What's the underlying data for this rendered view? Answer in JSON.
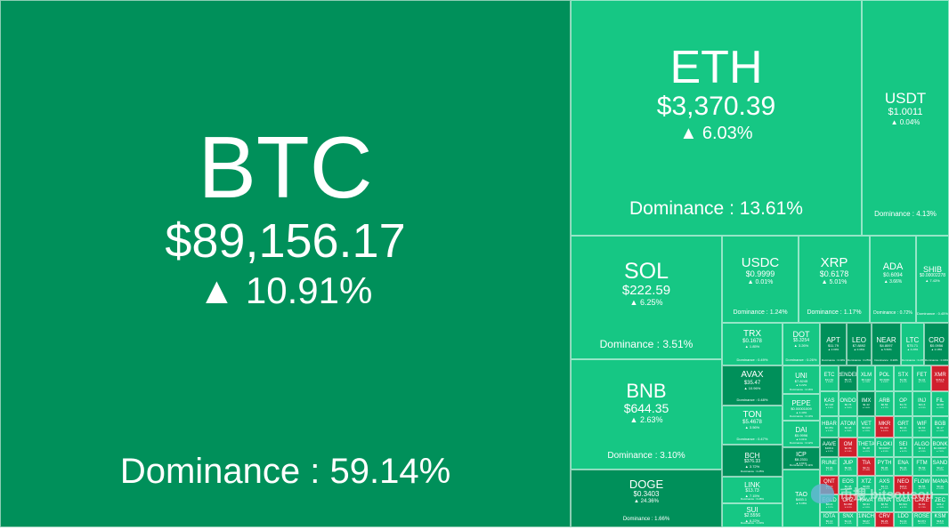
{
  "colors": {
    "up_dark": "#00905a",
    "up": "#16c784",
    "up_light": "#1bc47f",
    "down": "#d0202d",
    "grey": "#4f6b62"
  },
  "change_icon": "triangle-up-icon",
  "watermark": {
    "text": "币搜 bitsousou",
    "icon": "bird-logo-icon"
  },
  "coins": [
    {
      "symbol": "BTC",
      "price": "$89,156.17",
      "change": "▲ 10.91%",
      "dominance": "Dominance : 59.14%",
      "color": "up_dark"
    },
    {
      "symbol": "ETH",
      "price": "$3,370.39",
      "change": "▲ 6.03%",
      "dominance": "Dominance : 13.61%",
      "color": "up"
    },
    {
      "symbol": "USDT",
      "price": "$1.0011",
      "change": "▲ 0.04%",
      "dominance": "Dominance : 4.13%",
      "color": "up"
    },
    {
      "symbol": "SOL",
      "price": "$222.59",
      "change": "▲ 6.25%",
      "dominance": "Dominance : 3.51%",
      "color": "up"
    },
    {
      "symbol": "BNB",
      "price": "$644.35",
      "change": "▲ 2.63%",
      "dominance": "Dominance : 3.10%",
      "color": "up"
    },
    {
      "symbol": "DOGE",
      "price": "$0.3403",
      "change": "▲ 24.36%",
      "dominance": "Dominance : 1.66%",
      "color": "up_dark"
    },
    {
      "symbol": "USDC",
      "price": "$0.9999",
      "change": "▲ 0.01%",
      "dominance": "Dominance : 1.24%",
      "color": "up"
    },
    {
      "symbol": "XRP",
      "price": "$0.6178",
      "change": "▲ 5.01%",
      "dominance": "Dominance : 1.17%",
      "color": "up"
    },
    {
      "symbol": "ADA",
      "price": "$0.6094",
      "change": "▲ 3.66%",
      "dominance": "Dominance : 0.72%",
      "color": "up"
    },
    {
      "symbol": "SHIB",
      "price": "$0.00002278",
      "change": "▲ 7.43%",
      "dominance": "Dominance : 0.45%",
      "color": "up"
    },
    {
      "symbol": "TRX",
      "price": "$0.1678",
      "change": "▲ 1.85%",
      "dominance": "Dominance : 0.49%",
      "color": "up"
    },
    {
      "symbol": "DOT",
      "price": "$5.3254",
      "change": "▲ 3.26%",
      "dominance": "Dominance : 0.26%",
      "color": "up"
    },
    {
      "symbol": "APT",
      "price": "$11.79",
      "change": "▲ 2.09%",
      "dominance": "Dominance : 0.19%",
      "color": "up_dark"
    },
    {
      "symbol": "LEO",
      "price": "$7.8892",
      "change": "▲ 0.36%",
      "dominance": "Dominance : 0.25%",
      "color": "up_dark"
    },
    {
      "symbol": "NEAR",
      "price": "$4.8097",
      "change": "▲ 5.56%",
      "dominance": "Dominance : 0.20%",
      "color": "up_dark"
    },
    {
      "symbol": "LTC",
      "price": "$75.71",
      "change": "▲ 4.20%",
      "dominance": "Dominance : 0.20%",
      "color": "up"
    },
    {
      "symbol": "CRO",
      "price": "$0.0956",
      "change": "▲ 2.18%",
      "dominance": "Dominance : 0.09%",
      "color": "up_dark"
    },
    {
      "symbol": "AVAX",
      "price": "$35.47",
      "change": "▲ 10.96%",
      "dominance": "Dominance : 0.48%",
      "color": "up_dark"
    },
    {
      "symbol": "TON",
      "price": "$5.4678",
      "change": "▲ 3.56%",
      "dominance": "Dominance : 0.47%",
      "color": "up"
    },
    {
      "symbol": "BCH",
      "price": "$376.33",
      "change": "▲ 3.72%",
      "dominance": "Dominance : 0.25%",
      "color": "up_dark"
    },
    {
      "symbol": "LINK",
      "price": "$13.73",
      "change": "▲ 7.15%",
      "dominance": "Dominance : 0.28%",
      "color": "up"
    },
    {
      "symbol": "SUI",
      "price": "$2.5556",
      "change": "▲ 6.22%",
      "dominance": "Dominance : 0.23%",
      "color": "up"
    },
    {
      "symbol": "UNI",
      "price": "$7.8245",
      "change": "▲ 9.22%",
      "dominance": "Dominance : 0.16%",
      "color": "up"
    },
    {
      "symbol": "PEPE",
      "price": "$0.00001009",
      "change": "▲ 4.40%",
      "dominance": "Dominance : 0.13%",
      "color": "up"
    },
    {
      "symbol": "DAI",
      "price": "$0.9996",
      "change": "▲ 0.01%",
      "dominance": "Dominance : 0.12%",
      "color": "up"
    },
    {
      "symbol": "ICP",
      "price": "$8.2331",
      "change": "▲ 2.91%",
      "dominance": "Dominance : 0.11%",
      "color": "up_dark"
    },
    {
      "symbol": "TAO",
      "price": "$453.1",
      "change": "▲ 5.08%",
      "dominance": "",
      "color": "up"
    },
    {
      "symbol": "ETC",
      "price": "$21.54",
      "change": "▲ 3.86%",
      "dominance": "",
      "color": "up"
    },
    {
      "symbol": "RENDER",
      "price": "$5.75",
      "change": "▲ 8.12%",
      "dominance": "",
      "color": "up_dark"
    },
    {
      "symbol": "XLM",
      "price": "$0.1110",
      "change": "▲ 2.04%",
      "dominance": "",
      "color": "up"
    },
    {
      "symbol": "POL",
      "price": "$0.3346",
      "change": "▲ 6.60%",
      "dominance": "",
      "color": "up"
    },
    {
      "symbol": "STX",
      "price": "$1.69",
      "change": "▲ 4.51%",
      "dominance": "",
      "color": "up"
    },
    {
      "symbol": "FET",
      "price": "$1.31",
      "change": "▲ 2.77%",
      "dominance": "",
      "color": "up"
    },
    {
      "symbol": "XMR",
      "price": "$151.6",
      "change": "▼ 1.12%",
      "dominance": "",
      "color": "down"
    },
    {
      "symbol": "KAS",
      "price": "$0.118",
      "change": "▲ 3.10%",
      "dominance": "",
      "color": "up"
    },
    {
      "symbol": "ONDO",
      "price": "$0.78",
      "change": "▲ 2.90%",
      "dominance": "",
      "color": "up"
    },
    {
      "symbol": "IMX",
      "price": "$1.32",
      "change": "▲ 5.44%",
      "dominance": "",
      "color": "up_dark"
    },
    {
      "symbol": "ARB",
      "price": "$0.56",
      "change": "▲ 4.72%",
      "dominance": "",
      "color": "up"
    },
    {
      "symbol": "OP",
      "price": "$1.72",
      "change": "▲ 6.98%",
      "dominance": "",
      "color": "up"
    },
    {
      "symbol": "INJ",
      "price": "$21.6",
      "change": "▲ 8.24%",
      "dominance": "",
      "color": "up"
    },
    {
      "symbol": "FIL",
      "price": "$3.68",
      "change": "▲ 4.05%",
      "dominance": "",
      "color": "up"
    },
    {
      "symbol": "HBAR",
      "price": "$0.051",
      "change": "▲ 3.33%",
      "dominance": "",
      "color": "up"
    },
    {
      "symbol": "ATOM",
      "price": "$4.48",
      "change": "▲ 2.86%",
      "dominance": "",
      "color": "up"
    },
    {
      "symbol": "VET",
      "price": "$0.024",
      "change": "▲ 3.95%",
      "dominance": "",
      "color": "up"
    },
    {
      "symbol": "MKR",
      "price": "$1,321",
      "change": "▼ 0.87%",
      "dominance": "",
      "color": "down"
    },
    {
      "symbol": "GRT",
      "price": "$0.16",
      "change": "▲ 4.81%",
      "dominance": "",
      "color": "up"
    },
    {
      "symbol": "WIF",
      "price": "$2.63",
      "change": "▲ 9.80%",
      "dominance": "",
      "color": "up"
    },
    {
      "symbol": "BGB",
      "price": "$1.17",
      "change": "▲ 1.54%",
      "dominance": "",
      "color": "up"
    },
    {
      "symbol": "AAVE",
      "price": "$166.9",
      "change": "▲ 5.37%",
      "dominance": "",
      "color": "up_dark"
    },
    {
      "symbol": "OM",
      "price": "$2.09",
      "change": "▼ 2.14%",
      "dominance": "",
      "color": "down"
    },
    {
      "symbol": "THETA",
      "price": "$1.28",
      "change": "▲ 4.11%",
      "dominance": "",
      "color": "up"
    },
    {
      "symbol": "FLOKI",
      "price": "$0.00017",
      "change": "▲ 8.53%",
      "dominance": "",
      "color": "up"
    },
    {
      "symbol": "SEI",
      "price": "$0.36",
      "change": "▲ 6.07%",
      "dominance": "",
      "color": "up"
    },
    {
      "symbol": "ALGO",
      "price": "$0.14",
      "change": "▲ 3.28%",
      "dominance": "",
      "color": "up"
    },
    {
      "symbol": "BONK",
      "price": "$0.000027",
      "change": "▲ 7.62%",
      "dominance": "",
      "color": "up"
    },
    {
      "symbol": "RUNE",
      "price": "$4.96",
      "change": "▲ 5.16%",
      "dominance": "",
      "color": "up"
    },
    {
      "symbol": "JUP",
      "price": "$0.82",
      "change": "▲ 2.45%",
      "dominance": "",
      "color": "up"
    },
    {
      "symbol": "TIA",
      "price": "$4.71",
      "change": "▼ 1.48%",
      "dominance": "",
      "color": "down"
    },
    {
      "symbol": "PYTH",
      "price": "$0.36",
      "change": "▲ 3.69%",
      "dominance": "",
      "color": "up"
    },
    {
      "symbol": "ENA",
      "price": "$0.43",
      "change": "▲ 6.80%",
      "dominance": "",
      "color": "up"
    },
    {
      "symbol": "FTM",
      "price": "$0.59",
      "change": "▲ 5.72%",
      "dominance": "",
      "color": "up"
    },
    {
      "symbol": "SAND",
      "price": "$0.27",
      "change": "▲ 4.30%",
      "dominance": "",
      "color": "up"
    },
    {
      "symbol": "QNT",
      "price": "$64.0",
      "change": "▼ 0.55%",
      "dominance": "",
      "color": "down"
    },
    {
      "symbol": "EOS",
      "price": "$0.48",
      "change": "▲ 3.44%",
      "dominance": "",
      "color": "up"
    },
    {
      "symbol": "XTZ",
      "price": "$0.69",
      "change": "▲ 2.63%",
      "dominance": "",
      "color": "up"
    },
    {
      "symbol": "AXS",
      "price": "$4.71",
      "change": "▲ 4.99%",
      "dominance": "",
      "color": "up"
    },
    {
      "symbol": "NEO",
      "price": "$10.3",
      "change": "▼ 1.06%",
      "dominance": "",
      "color": "down"
    },
    {
      "symbol": "FLOW",
      "price": "$0.55",
      "change": "▲ 3.72%",
      "dominance": "",
      "color": "up"
    },
    {
      "symbol": "MANA",
      "price": "$0.30",
      "change": "▲ 4.26%",
      "dominance": "",
      "color": "up"
    },
    {
      "symbol": "EGLD",
      "price": "$24.6",
      "change": "▲ 2.97%",
      "dominance": "",
      "color": "up"
    },
    {
      "symbol": "CHZ",
      "price": "$0.068",
      "change": "▼ 0.91%",
      "dominance": "",
      "color": "down"
    },
    {
      "symbol": "KAVA",
      "price": "$0.34",
      "change": "▲ 3.05%",
      "dominance": "",
      "color": "up"
    },
    {
      "symbol": "MINA",
      "price": "$0.52",
      "change": "▲ 5.40%",
      "dominance": "",
      "color": "up"
    },
    {
      "symbol": "GALA",
      "price": "$0.021",
      "change": "▲ 6.11%",
      "dominance": "",
      "color": "up"
    },
    {
      "symbol": "CAKE",
      "price": "$1.82",
      "change": "▼ 1.73%",
      "dominance": "",
      "color": "down"
    },
    {
      "symbol": "ZEC",
      "price": "$36.2",
      "change": "▲ 2.48%",
      "dominance": "",
      "color": "up"
    },
    {
      "symbol": "IOTA",
      "price": "$0.13",
      "change": "▲ 3.84%",
      "dominance": "",
      "color": "up"
    },
    {
      "symbol": "SNX",
      "price": "$1.41",
      "change": "▲ 5.20%",
      "dominance": "",
      "color": "up"
    },
    {
      "symbol": "1INCH",
      "price": "$0.27",
      "change": "▲ 4.66%",
      "dominance": "",
      "color": "up"
    },
    {
      "symbol": "CRV",
      "price": "$0.29",
      "change": "▼ 2.02%",
      "dominance": "",
      "color": "down"
    },
    {
      "symbol": "LDO",
      "price": "$1.19",
      "change": "▲ 6.45%",
      "dominance": "",
      "color": "up"
    },
    {
      "symbol": "ROSE",
      "price": "$0.071",
      "change": "▲ 3.17%",
      "dominance": "",
      "color": "up"
    },
    {
      "symbol": "KSM",
      "price": "$18.9",
      "change": "▲ 2.32%",
      "dominance": "",
      "color": "up"
    },
    {
      "symbol": "ZIL",
      "price": "$0.014",
      "change": "▼ 0.68%",
      "dominance": "",
      "color": "down"
    },
    {
      "symbol": "COMP",
      "price": "$45.9",
      "change": "▲ 4.03%",
      "dominance": "",
      "color": "up"
    },
    {
      "symbol": "ENJ",
      "price": "$0.15",
      "change": "▲ 3.59%",
      "dominance": "",
      "color": "up"
    },
    {
      "symbol": "BAT",
      "price": "$0.17",
      "change": "▼ 1.27%",
      "dominance": "",
      "color": "down"
    },
    {
      "symbol": "DASH",
      "price": "$24.1",
      "change": "▲ 2.71%",
      "dominance": "",
      "color": "up"
    }
  ]
}
